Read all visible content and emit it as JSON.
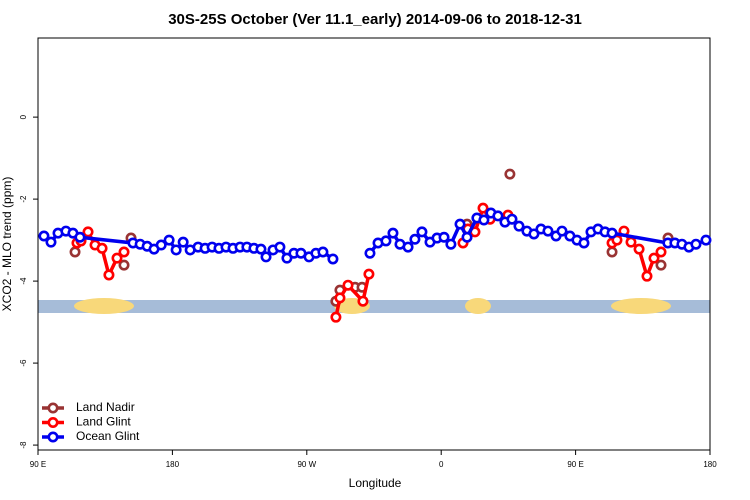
{
  "chart_data": {
    "type": "line",
    "title": "30S-25S October (Ver 11.1_early)   2014-09-06 to 2018-12-31",
    "xlabel": "Longitude",
    "ylabel": "XCO2 - MLO trend (ppm)",
    "xlim": [
      90,
      540
    ],
    "xticks": [
      {
        "value": 90,
        "label": "90 E"
      },
      180,
      {
        "value": 270,
        "label": "90 W"
      },
      {
        "value": 360,
        "label": "0"
      },
      {
        "value": 450,
        "label": "90 E"
      },
      {
        "value": 540,
        "label": "180"
      }
    ],
    "ylim": [
      -8.12,
      1.93
    ],
    "yticks": [
      0,
      -2,
      -4,
      -6,
      -8
    ],
    "legend": "bottomleft",
    "series": [
      {
        "name": "Land Nadir",
        "color": "#993333",
        "style": "points",
        "x": [
          114.8,
          147.6,
          152.3,
          289.5,
          292.2,
          302.3,
          307,
          377.3,
          406,
          474.4,
          507.2,
          511.9
        ],
        "values": [
          -3.29,
          -3.61,
          -2.95,
          -4.49,
          -4.22,
          -4.15,
          -4.15,
          -2.61,
          -1.39,
          -3.29,
          -3.61,
          -2.95
        ]
      },
      {
        "name": "Land Glint",
        "color": "#ff0000",
        "style": "lines",
        "x": [
          116.1,
          118.8,
          123.5,
          128.2,
          132.9,
          137.5,
          142.9,
          147.6,
          null,
          289.5,
          292.2,
          297.6,
          307.6,
          311.6,
          null,
          374.6,
          377.9,
          382.6,
          388,
          392.7,
          404.7,
          null,
          474.4,
          477.7,
          482.4,
          487.1,
          492.5,
          497.8,
          502.5,
          507.2
        ],
        "values": [
          -3.07,
          -3.02,
          -2.8,
          -3.12,
          -3.2,
          -3.85,
          -3.44,
          -3.29,
          null,
          -4.88,
          -4.41,
          -4.1,
          -4.49,
          -3.83,
          null,
          -3.07,
          -2.73,
          -2.8,
          -2.22,
          -2.49,
          -2.39,
          null,
          -3.07,
          -3.0,
          -2.78,
          -3.05,
          -3.22,
          -3.88,
          -3.44,
          -3.29
        ]
      },
      {
        "name": "Ocean Glint",
        "color": "#0000ee",
        "style": "lines",
        "x": [
          94,
          98.7,
          103.4,
          108.7,
          113.4,
          118.1,
          153.6,
          158.4,
          163.1,
          167.7,
          172.5,
          177.8,
          182.5,
          187.2,
          191.9,
          197.2,
          201.9,
          206.6,
          211.2,
          215.9,
          220.6,
          225.3,
          229.9,
          234.6,
          239.3,
          242.7,
          247.4,
          252,
          256.7,
          261.4,
          266.1,
          271.5,
          276.1,
          280.8,
          287.5,
          null,
          312.3,
          317.7,
          323,
          327.7,
          332.4,
          337.8,
          342.4,
          347.1,
          352.5,
          357.2,
          361.9,
          366.5,
          372.6,
          377.3,
          383.9,
          388.6,
          393.3,
          398,
          402.7,
          407.4,
          412.1,
          417.4,
          422.1,
          426.8,
          431.5,
          436.9,
          440.9,
          446.2,
          450.9,
          455.6,
          460.3,
          465,
          469.7,
          474.4,
          511.8,
          516.5,
          521.2,
          525.9,
          530.6,
          537.3
        ],
        "values": [
          -2.9,
          -3.05,
          -2.83,
          -2.78,
          -2.83,
          -2.93,
          -3.07,
          -3.1,
          -3.15,
          -3.22,
          -3.12,
          -3.0,
          -3.24,
          -3.05,
          -3.24,
          -3.17,
          -3.2,
          -3.17,
          -3.2,
          -3.17,
          -3.2,
          -3.17,
          -3.17,
          -3.2,
          -3.22,
          -3.41,
          -3.24,
          -3.17,
          -3.44,
          -3.32,
          -3.32,
          -3.41,
          -3.32,
          -3.29,
          -3.46,
          null,
          -3.32,
          -3.07,
          -3.02,
          -2.83,
          -3.1,
          -3.17,
          -2.98,
          -2.8,
          -3.05,
          -2.95,
          -2.93,
          -3.1,
          -2.61,
          -2.93,
          -2.46,
          -2.51,
          -2.34,
          -2.41,
          -2.56,
          -2.49,
          -2.66,
          -2.78,
          -2.85,
          -2.73,
          -2.78,
          -2.9,
          -2.78,
          -2.9,
          -3.0,
          -3.07,
          -2.8,
          -2.73,
          -2.8,
          -2.83,
          -3.07,
          -3.07,
          -3.1,
          -3.17,
          -3.1,
          -3.0
        ]
      }
    ]
  }
}
